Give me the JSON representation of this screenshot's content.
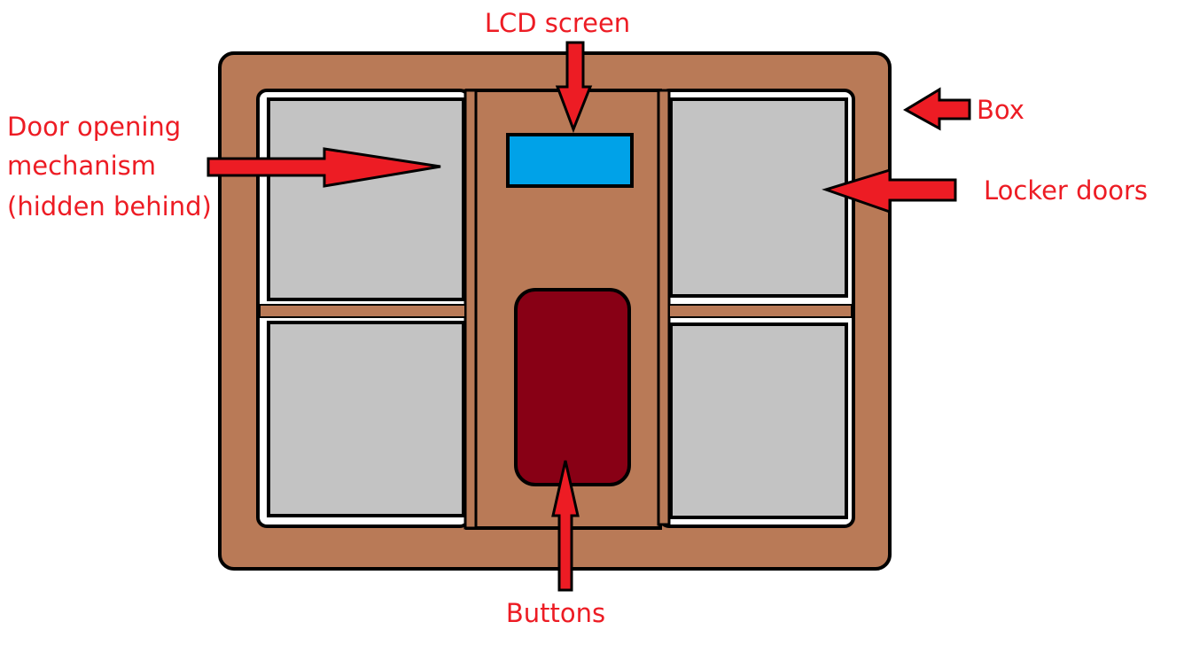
{
  "labels": {
    "lcd": "LCD screen",
    "box": "Box",
    "locker_doors": "Locker doors",
    "mechanism": [
      "Door opening",
      "mechanism",
      "(hidden behind)"
    ],
    "buttons": "Buttons"
  },
  "colors": {
    "box": "#b97a57",
    "door": "#c3c3c3",
    "lcd": "#00a2e8",
    "buttons": "#880015",
    "label": "#ed1c24",
    "arrow": "#ed1c24",
    "outline": "#000000",
    "frame": "#ffffff"
  }
}
